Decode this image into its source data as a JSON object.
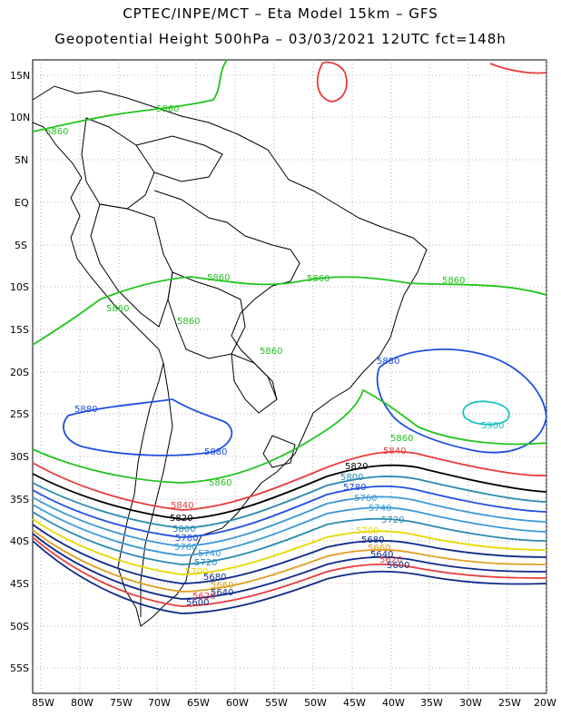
{
  "title": {
    "line1": "CPTEC/INPE/MCT –  Eta Model 15km – GFS",
    "line2": "Geopotential Height 500hPa – 03/03/2021 12UTC fct=148h"
  },
  "axes": {
    "lat_labels": [
      "15N",
      "10N",
      "5N",
      "EQ",
      "5S",
      "10S",
      "15S",
      "20S",
      "25S",
      "30S",
      "35S",
      "40S",
      "45S",
      "50S",
      "55S"
    ],
    "lon_labels": [
      "85W",
      "80W",
      "75W",
      "70W",
      "65W",
      "60W",
      "55W",
      "50W",
      "45W",
      "40W",
      "35W",
      "30W",
      "25W",
      "20W"
    ]
  },
  "map_extent": {
    "lon_min": -86,
    "lon_max": -20,
    "lat_min": -58,
    "lat_max": 16
  },
  "contours": [
    {
      "level": "5900",
      "color": "#1fc2c2"
    },
    {
      "level": "5880",
      "color": "#1f4fe0"
    },
    {
      "level": "5860",
      "color": "#22c41e"
    },
    {
      "level": "5840",
      "color": "#e83c3c"
    },
    {
      "level": "5820",
      "color": "#000000"
    },
    {
      "level": "5800",
      "color": "#2a8ab0"
    },
    {
      "level": "5780",
      "color": "#1f4fe0"
    },
    {
      "level": "5760",
      "color": "#3a9ad6"
    },
    {
      "level": "5740",
      "color": "#3a9ad6"
    },
    {
      "level": "5720",
      "color": "#2a8ab0"
    },
    {
      "level": "5700",
      "color": "#e8d800"
    },
    {
      "level": "5680",
      "color": "#0f2a8a"
    },
    {
      "level": "5660",
      "color": "#e0a020"
    },
    {
      "level": "5640",
      "color": "#0f2a8a"
    },
    {
      "level": "5620",
      "color": "#e83c3c"
    },
    {
      "level": "5600",
      "color": "#0f2a8a"
    }
  ],
  "contour_labels": [
    {
      "text": "5860",
      "color": "#22c41e"
    },
    {
      "text": "5860",
      "color": "#22c41e"
    },
    {
      "text": "5860",
      "color": "#22c41e"
    },
    {
      "text": "5860",
      "color": "#22c41e"
    },
    {
      "text": "5860",
      "color": "#22c41e"
    },
    {
      "text": "5860",
      "color": "#22c41e"
    },
    {
      "text": "5860",
      "color": "#22c41e"
    },
    {
      "text": "5860",
      "color": "#22c41e"
    },
    {
      "text": "5860",
      "color": "#22c41e"
    },
    {
      "text": "5860",
      "color": "#22c41e"
    },
    {
      "text": "5880",
      "color": "#1f4fe0"
    },
    {
      "text": "5880",
      "color": "#1f4fe0"
    },
    {
      "text": "5880",
      "color": "#1f4fe0"
    },
    {
      "text": "5900",
      "color": "#1fc2c2"
    },
    {
      "text": "5840",
      "color": "#e83c3c"
    },
    {
      "text": "5840",
      "color": "#e83c3c"
    },
    {
      "text": "5820",
      "color": "#000000"
    },
    {
      "text": "5820",
      "color": "#000000"
    },
    {
      "text": "5800",
      "color": "#2a8ab0"
    },
    {
      "text": "5800",
      "color": "#2a8ab0"
    },
    {
      "text": "5780",
      "color": "#1f4fe0"
    },
    {
      "text": "5780",
      "color": "#1f4fe0"
    },
    {
      "text": "5760",
      "color": "#3a9ad6"
    },
    {
      "text": "5760",
      "color": "#3a9ad6"
    },
    {
      "text": "5740",
      "color": "#3a9ad6"
    },
    {
      "text": "5740",
      "color": "#3a9ad6"
    },
    {
      "text": "5720",
      "color": "#2a8ab0"
    },
    {
      "text": "5720",
      "color": "#2a8ab0"
    },
    {
      "text": "5700",
      "color": "#e8d800"
    },
    {
      "text": "5700",
      "color": "#e8d800"
    },
    {
      "text": "5680",
      "color": "#0f2a8a"
    },
    {
      "text": "5680",
      "color": "#0f2a8a"
    },
    {
      "text": "5660",
      "color": "#e0a020"
    },
    {
      "text": "5660",
      "color": "#e0a020"
    },
    {
      "text": "5640",
      "color": "#0f2a8a"
    },
    {
      "text": "5640",
      "color": "#0f2a8a"
    },
    {
      "text": "5620",
      "color": "#e83c3c"
    },
    {
      "text": "5620",
      "color": "#e83c3c"
    },
    {
      "text": "5600",
      "color": "#0f2a8a"
    },
    {
      "text": "5600",
      "color": "#0f2a8a"
    }
  ]
}
